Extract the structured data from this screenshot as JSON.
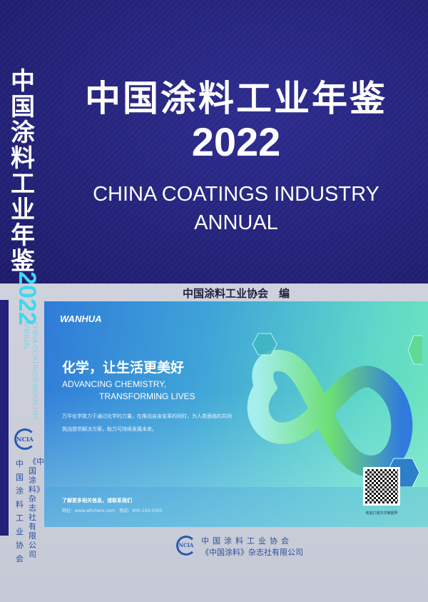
{
  "cover": {
    "title_cn": "中国涂料工业年鉴",
    "year": "2022",
    "title_en_line1": "CHINA COATINGS INDUSTRY",
    "title_en_line2": "ANNUAL",
    "editor": "中国涂料工业协会　编"
  },
  "spine": {
    "title_cn": "中国涂料工业年鉴",
    "year": "2022",
    "title_en_line1": "CHINA COATINGS INDUSTRY",
    "title_en_line2": "ANNUAL",
    "logo": "NCIA",
    "publisher1": "中国涂料工业协会",
    "publisher2": "《中国涂料》杂志社有限公司"
  },
  "ad": {
    "brand": "WANHUA",
    "slogan_cn": "化学，让生活更美好",
    "slogan_en_line1": "ADVANCING CHEMISTRY,",
    "slogan_en_line2": "TRANSFORMING LIVES",
    "description": "万华化学致力于通过化学的力量，在推动自身变革的同时，为人类面临的共同挑战提供解决方案，助力可持续发展未来。",
    "contact_title": "了解更多相关信息，请联系我们",
    "contact_details": "网址：www.whchem.com　电话：400-160-0305",
    "qr_caption": "欢迎订阅万华微视界",
    "colors": {
      "blue": "#2f7bd8",
      "green": "#6fe6bc"
    }
  },
  "footer": {
    "logo": "NCIA",
    "publisher1": "中国涂料工业协会",
    "publisher2": "《中国涂料》杂志社有限公司"
  },
  "colors": {
    "navy": "#25237a",
    "cyan": "#3fd8ef",
    "gray": "#c9cdd8"
  }
}
